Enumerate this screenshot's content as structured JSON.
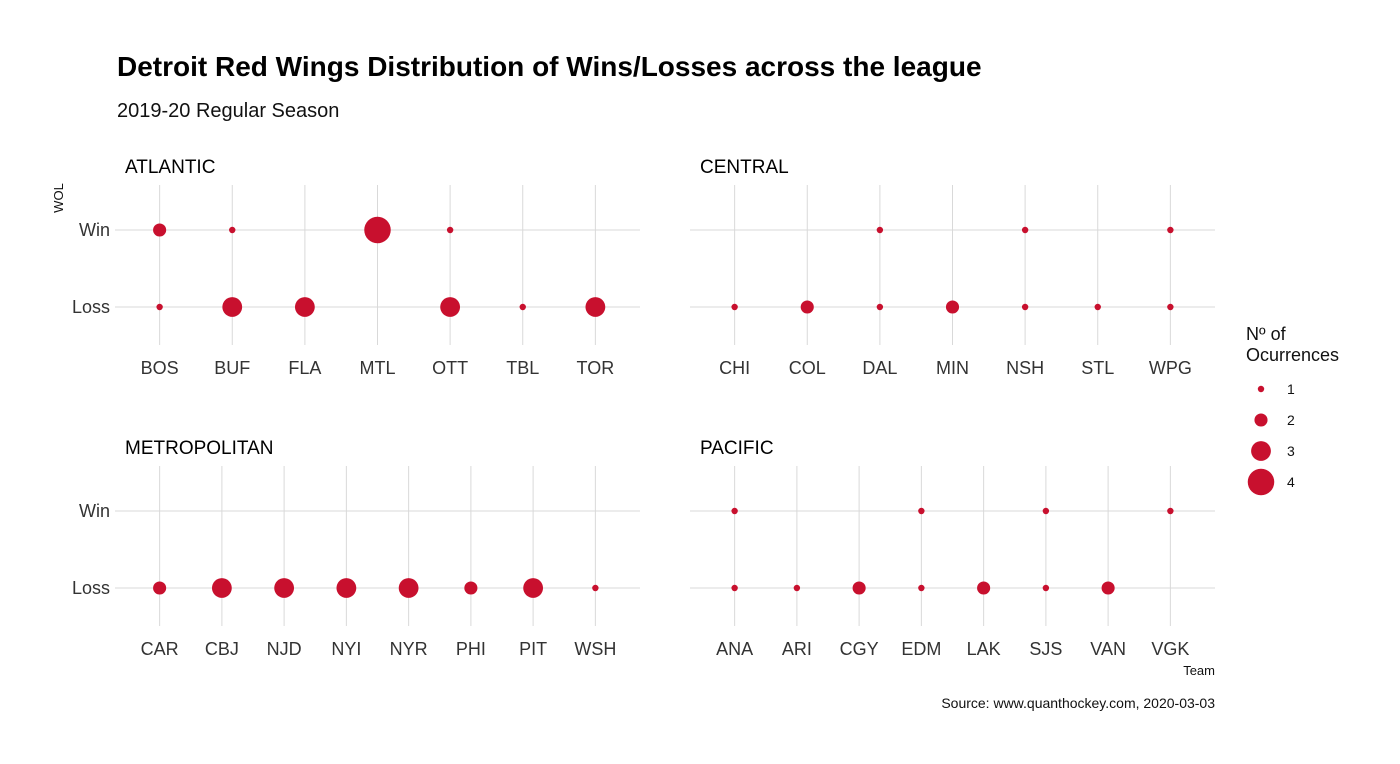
{
  "chart_data": {
    "type": "scatter",
    "title": "Detroit Red Wings Distribution of Wins/Losses across the league",
    "subtitle": "2019-20 Regular Season",
    "caption": "Source: www.quanthockey.com, 2020-03-03",
    "xlabel": "Team",
    "ylabel": "WOL",
    "y_categories": [
      "Win",
      "Loss"
    ],
    "grid": true,
    "colors": {
      "point": "#c8102e",
      "grid": "#d9d9d9"
    },
    "legend": {
      "title_lines": [
        "Nº of",
        "Ocurrences"
      ],
      "placement": "right",
      "items": [
        {
          "label": "1",
          "value": 1
        },
        {
          "label": "2",
          "value": 2
        },
        {
          "label": "3",
          "value": 3
        },
        {
          "label": "4",
          "value": 4
        }
      ]
    },
    "panels": [
      {
        "name": "ATLANTIC",
        "teams": [
          "BOS",
          "BUF",
          "FLA",
          "MTL",
          "OTT",
          "TBL",
          "TOR"
        ],
        "points": [
          {
            "team": "BOS",
            "wol": "Win",
            "n": 2
          },
          {
            "team": "BOS",
            "wol": "Loss",
            "n": 1
          },
          {
            "team": "BUF",
            "wol": "Win",
            "n": 1
          },
          {
            "team": "BUF",
            "wol": "Loss",
            "n": 3
          },
          {
            "team": "FLA",
            "wol": "Loss",
            "n": 3
          },
          {
            "team": "MTL",
            "wol": "Win",
            "n": 4
          },
          {
            "team": "OTT",
            "wol": "Win",
            "n": 1
          },
          {
            "team": "OTT",
            "wol": "Loss",
            "n": 3
          },
          {
            "team": "TBL",
            "wol": "Loss",
            "n": 1
          },
          {
            "team": "TOR",
            "wol": "Loss",
            "n": 3
          }
        ]
      },
      {
        "name": "CENTRAL",
        "teams": [
          "CHI",
          "COL",
          "DAL",
          "MIN",
          "NSH",
          "STL",
          "WPG"
        ],
        "points": [
          {
            "team": "CHI",
            "wol": "Loss",
            "n": 1
          },
          {
            "team": "COL",
            "wol": "Loss",
            "n": 2
          },
          {
            "team": "DAL",
            "wol": "Win",
            "n": 1
          },
          {
            "team": "DAL",
            "wol": "Loss",
            "n": 1
          },
          {
            "team": "MIN",
            "wol": "Loss",
            "n": 2
          },
          {
            "team": "NSH",
            "wol": "Win",
            "n": 1
          },
          {
            "team": "NSH",
            "wol": "Loss",
            "n": 1
          },
          {
            "team": "STL",
            "wol": "Loss",
            "n": 1
          },
          {
            "team": "WPG",
            "wol": "Win",
            "n": 1
          },
          {
            "team": "WPG",
            "wol": "Loss",
            "n": 1
          }
        ]
      },
      {
        "name": "METROPOLITAN",
        "teams": [
          "CAR",
          "CBJ",
          "NJD",
          "NYI",
          "NYR",
          "PHI",
          "PIT",
          "WSH"
        ],
        "points": [
          {
            "team": "CAR",
            "wol": "Loss",
            "n": 2
          },
          {
            "team": "CBJ",
            "wol": "Loss",
            "n": 3
          },
          {
            "team": "NJD",
            "wol": "Loss",
            "n": 3
          },
          {
            "team": "NYI",
            "wol": "Loss",
            "n": 3
          },
          {
            "team": "NYR",
            "wol": "Loss",
            "n": 3
          },
          {
            "team": "PHI",
            "wol": "Loss",
            "n": 2
          },
          {
            "team": "PIT",
            "wol": "Loss",
            "n": 3
          },
          {
            "team": "WSH",
            "wol": "Loss",
            "n": 1
          }
        ]
      },
      {
        "name": "PACIFIC",
        "teams": [
          "ANA",
          "ARI",
          "CGY",
          "EDM",
          "LAK",
          "SJS",
          "VAN",
          "VGK"
        ],
        "points": [
          {
            "team": "ANA",
            "wol": "Win",
            "n": 1
          },
          {
            "team": "ANA",
            "wol": "Loss",
            "n": 1
          },
          {
            "team": "ARI",
            "wol": "Loss",
            "n": 1
          },
          {
            "team": "CGY",
            "wol": "Loss",
            "n": 2
          },
          {
            "team": "EDM",
            "wol": "Win",
            "n": 1
          },
          {
            "team": "EDM",
            "wol": "Loss",
            "n": 1
          },
          {
            "team": "LAK",
            "wol": "Loss",
            "n": 2
          },
          {
            "team": "SJS",
            "wol": "Win",
            "n": 1
          },
          {
            "team": "SJS",
            "wol": "Loss",
            "n": 1
          },
          {
            "team": "VAN",
            "wol": "Loss",
            "n": 2
          },
          {
            "team": "VGK",
            "wol": "Win",
            "n": 1
          }
        ]
      }
    ]
  }
}
